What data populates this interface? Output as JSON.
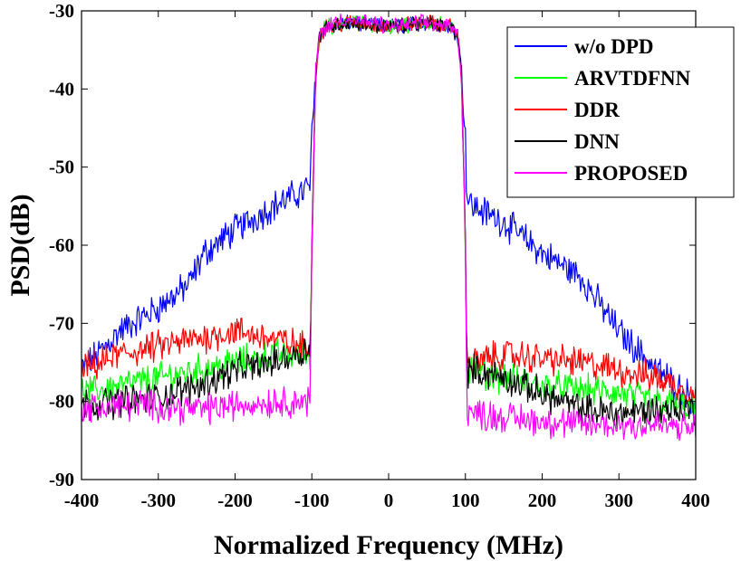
{
  "chart_data": {
    "type": "line",
    "xlabel": "Normalized Frequency (MHz)",
    "ylabel": "PSD(dB)",
    "xlim": [
      -400,
      400
    ],
    "ylim": [
      -90,
      -30
    ],
    "xticks": [
      -400,
      -300,
      -200,
      -100,
      0,
      100,
      200,
      300,
      400
    ],
    "yticks": [
      -90,
      -80,
      -70,
      -60,
      -50,
      -40,
      -30
    ],
    "grid": false,
    "legend_position": "top-right",
    "series": [
      {
        "name": "w/o DPD",
        "color": "#0000ff",
        "points": [
          [
            -400,
            -76
          ],
          [
            -350,
            -71
          ],
          [
            -300,
            -68
          ],
          [
            -260,
            -65
          ],
          [
            -240,
            -61
          ],
          [
            -200,
            -58
          ],
          [
            -150,
            -55
          ],
          [
            -110,
            -53
          ],
          [
            -102,
            -52
          ],
          [
            -100,
            -46
          ],
          [
            -95,
            -38
          ],
          [
            -90,
            -33
          ],
          [
            -80,
            -32
          ],
          [
            -50,
            -31.5
          ],
          [
            0,
            -32
          ],
          [
            50,
            -31.5
          ],
          [
            80,
            -32
          ],
          [
            90,
            -33
          ],
          [
            95,
            -38
          ],
          [
            100,
            -46
          ],
          [
            102,
            -54
          ],
          [
            110,
            -55
          ],
          [
            150,
            -57
          ],
          [
            200,
            -61
          ],
          [
            250,
            -64
          ],
          [
            300,
            -71
          ],
          [
            350,
            -76
          ],
          [
            400,
            -80
          ]
        ]
      },
      {
        "name": "ARVTDFNN",
        "color": "#00ff00",
        "points": [
          [
            -400,
            -79
          ],
          [
            -350,
            -78
          ],
          [
            -300,
            -77
          ],
          [
            -250,
            -76
          ],
          [
            -200,
            -75
          ],
          [
            -150,
            -74
          ],
          [
            -110,
            -74
          ],
          [
            -102,
            -74
          ],
          [
            -100,
            -60
          ],
          [
            -95,
            -38
          ],
          [
            -90,
            -33
          ],
          [
            -80,
            -32
          ],
          [
            -50,
            -31.5
          ],
          [
            0,
            -32
          ],
          [
            50,
            -31.5
          ],
          [
            80,
            -32
          ],
          [
            90,
            -33
          ],
          [
            95,
            -38
          ],
          [
            100,
            -60
          ],
          [
            102,
            -76
          ],
          [
            110,
            -76
          ],
          [
            150,
            -77
          ],
          [
            200,
            -78
          ],
          [
            250,
            -78.5
          ],
          [
            300,
            -79
          ],
          [
            350,
            -80
          ],
          [
            400,
            -81
          ]
        ]
      },
      {
        "name": "DDR",
        "color": "#ff0000",
        "points": [
          [
            -400,
            -76
          ],
          [
            -350,
            -74
          ],
          [
            -300,
            -73
          ],
          [
            -250,
            -72
          ],
          [
            -200,
            -71
          ],
          [
            -150,
            -72
          ],
          [
            -110,
            -73
          ],
          [
            -102,
            -73
          ],
          [
            -100,
            -60
          ],
          [
            -95,
            -38
          ],
          [
            -90,
            -33
          ],
          [
            -80,
            -32
          ],
          [
            -50,
            -31.5
          ],
          [
            0,
            -32
          ],
          [
            50,
            -31.5
          ],
          [
            80,
            -32
          ],
          [
            90,
            -33
          ],
          [
            95,
            -38
          ],
          [
            100,
            -60
          ],
          [
            102,
            -75
          ],
          [
            110,
            -75
          ],
          [
            150,
            -74
          ],
          [
            200,
            -74.5
          ],
          [
            250,
            -75
          ],
          [
            300,
            -76
          ],
          [
            350,
            -77
          ],
          [
            400,
            -79
          ]
        ]
      },
      {
        "name": "DNN",
        "color": "#000000",
        "points": [
          [
            -400,
            -80.5
          ],
          [
            -350,
            -80
          ],
          [
            -300,
            -79.5
          ],
          [
            -250,
            -78
          ],
          [
            -200,
            -76
          ],
          [
            -150,
            -75
          ],
          [
            -110,
            -73.5
          ],
          [
            -102,
            -73
          ],
          [
            -100,
            -60
          ],
          [
            -95,
            -38
          ],
          [
            -90,
            -33
          ],
          [
            -80,
            -32
          ],
          [
            -50,
            -31.5
          ],
          [
            0,
            -32
          ],
          [
            50,
            -31.5
          ],
          [
            80,
            -32
          ],
          [
            90,
            -33
          ],
          [
            95,
            -38
          ],
          [
            100,
            -60
          ],
          [
            102,
            -76
          ],
          [
            110,
            -76
          ],
          [
            150,
            -77
          ],
          [
            200,
            -79
          ],
          [
            250,
            -81
          ],
          [
            300,
            -81.5
          ],
          [
            350,
            -81
          ],
          [
            400,
            -81
          ]
        ]
      },
      {
        "name": "PROPOSED",
        "color": "#ff00ff",
        "points": [
          [
            -400,
            -81
          ],
          [
            -350,
            -80.5
          ],
          [
            -300,
            -80.5
          ],
          [
            -250,
            -81
          ],
          [
            -200,
            -80.5
          ],
          [
            -150,
            -80
          ],
          [
            -110,
            -80
          ],
          [
            -102,
            -80
          ],
          [
            -100,
            -60
          ],
          [
            -95,
            -38
          ],
          [
            -90,
            -33
          ],
          [
            -80,
            -32
          ],
          [
            -60,
            -31
          ],
          [
            0,
            -32
          ],
          [
            50,
            -31.5
          ],
          [
            80,
            -32
          ],
          [
            90,
            -33
          ],
          [
            95,
            -38
          ],
          [
            100,
            -60
          ],
          [
            102,
            -81
          ],
          [
            110,
            -81.5
          ],
          [
            150,
            -82
          ],
          [
            200,
            -82.5
          ],
          [
            250,
            -83
          ],
          [
            300,
            -83
          ],
          [
            350,
            -83
          ],
          [
            400,
            -83.5
          ]
        ]
      }
    ]
  }
}
